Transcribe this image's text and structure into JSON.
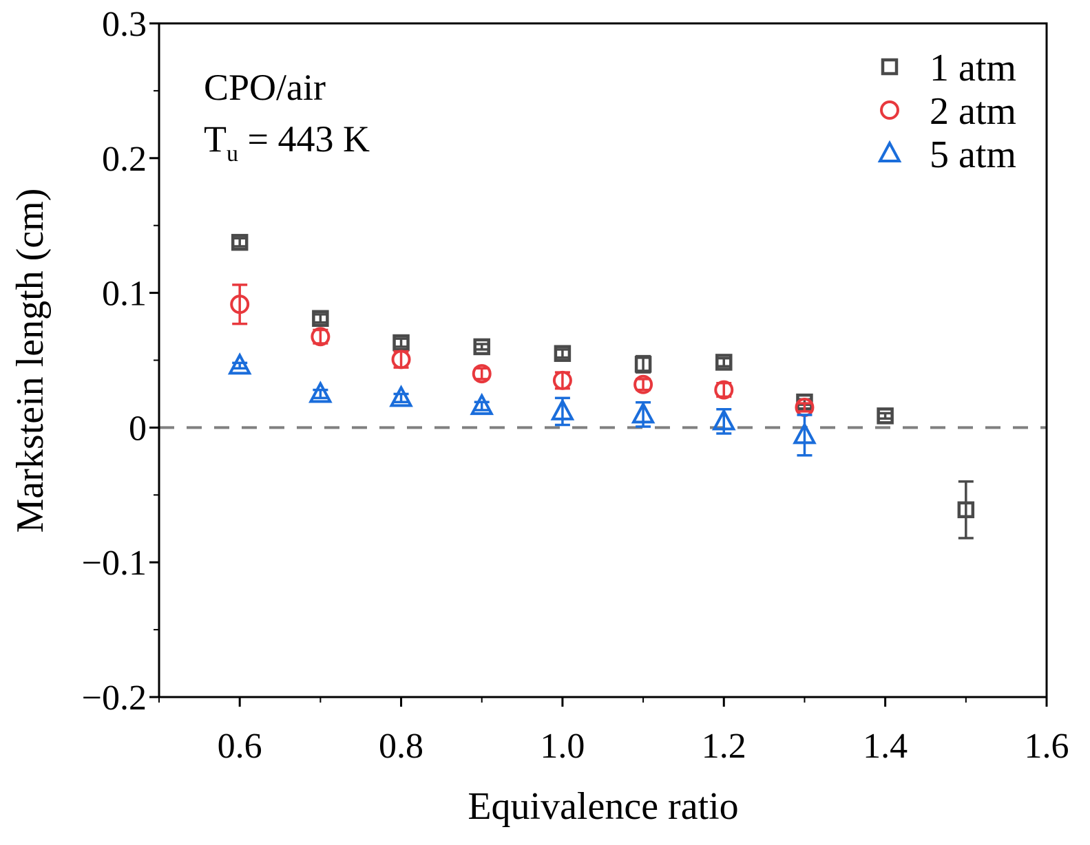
{
  "chart_data": {
    "type": "scatter",
    "xlabel": "Equivalence ratio",
    "ylabel": "Markstein length (cm)",
    "xlim": [
      0.5,
      1.6
    ],
    "ylim": [
      -0.2,
      0.3
    ],
    "xticks": [
      0.6,
      0.8,
      1.0,
      1.2,
      1.4,
      1.6
    ],
    "xtick_labels": [
      "0.6",
      "0.8",
      "1.0",
      "1.2",
      "1.4",
      "1.6"
    ],
    "yticks": [
      -0.2,
      -0.1,
      0,
      0.1,
      0.2,
      0.3
    ],
    "ytick_labels": [
      "−0.2",
      "−0.1",
      "0",
      "0.1",
      "0.2",
      "0.3"
    ],
    "grid": false,
    "reference_line": {
      "y": 0,
      "style": "dashed",
      "color": "#808080"
    },
    "annotation": {
      "line1": "CPO/air",
      "line2_main": "T",
      "line2_sub": "u",
      "line2_rest": " = 443 K"
    },
    "legend_position": "top-right",
    "series": [
      {
        "name": "1 atm",
        "marker": "square",
        "color": "#4a4a4a",
        "x": [
          0.6,
          0.7,
          0.8,
          0.9,
          1.0,
          1.1,
          1.2,
          1.3,
          1.4,
          1.5
        ],
        "y": [
          0.1375,
          0.081,
          0.063,
          0.06,
          0.055,
          0.047,
          0.0485,
          0.019,
          0.0087,
          -0.061
        ],
        "error": [
          0.003,
          0.003,
          0.003,
          0.002,
          0.003,
          0.006,
          0.003,
          0.002,
          0.002,
          0.021
        ]
      },
      {
        "name": "2 atm",
        "marker": "circle",
        "color": "#e8383d",
        "x": [
          0.6,
          0.7,
          0.8,
          0.9,
          1.0,
          1.1,
          1.2,
          1.3
        ],
        "y": [
          0.0915,
          0.0675,
          0.0506,
          0.04,
          0.035,
          0.032,
          0.028,
          0.015
        ],
        "error": [
          0.0145,
          0.005,
          0.006,
          0.004,
          0.006,
          0.004,
          0.005,
          0.003
        ]
      },
      {
        "name": "5 atm",
        "marker": "triangle",
        "color": "#1a6ddb",
        "x": [
          0.6,
          0.7,
          0.8,
          0.9,
          1.0,
          1.1,
          1.2,
          1.3
        ],
        "y": [
          0.046,
          0.025,
          0.022,
          0.016,
          0.012,
          0.0097,
          0.0046,
          -0.0056
        ],
        "error": [
          0.002,
          0.003,
          0.003,
          0.003,
          0.01,
          0.009,
          0.009,
          0.015
        ]
      }
    ]
  }
}
